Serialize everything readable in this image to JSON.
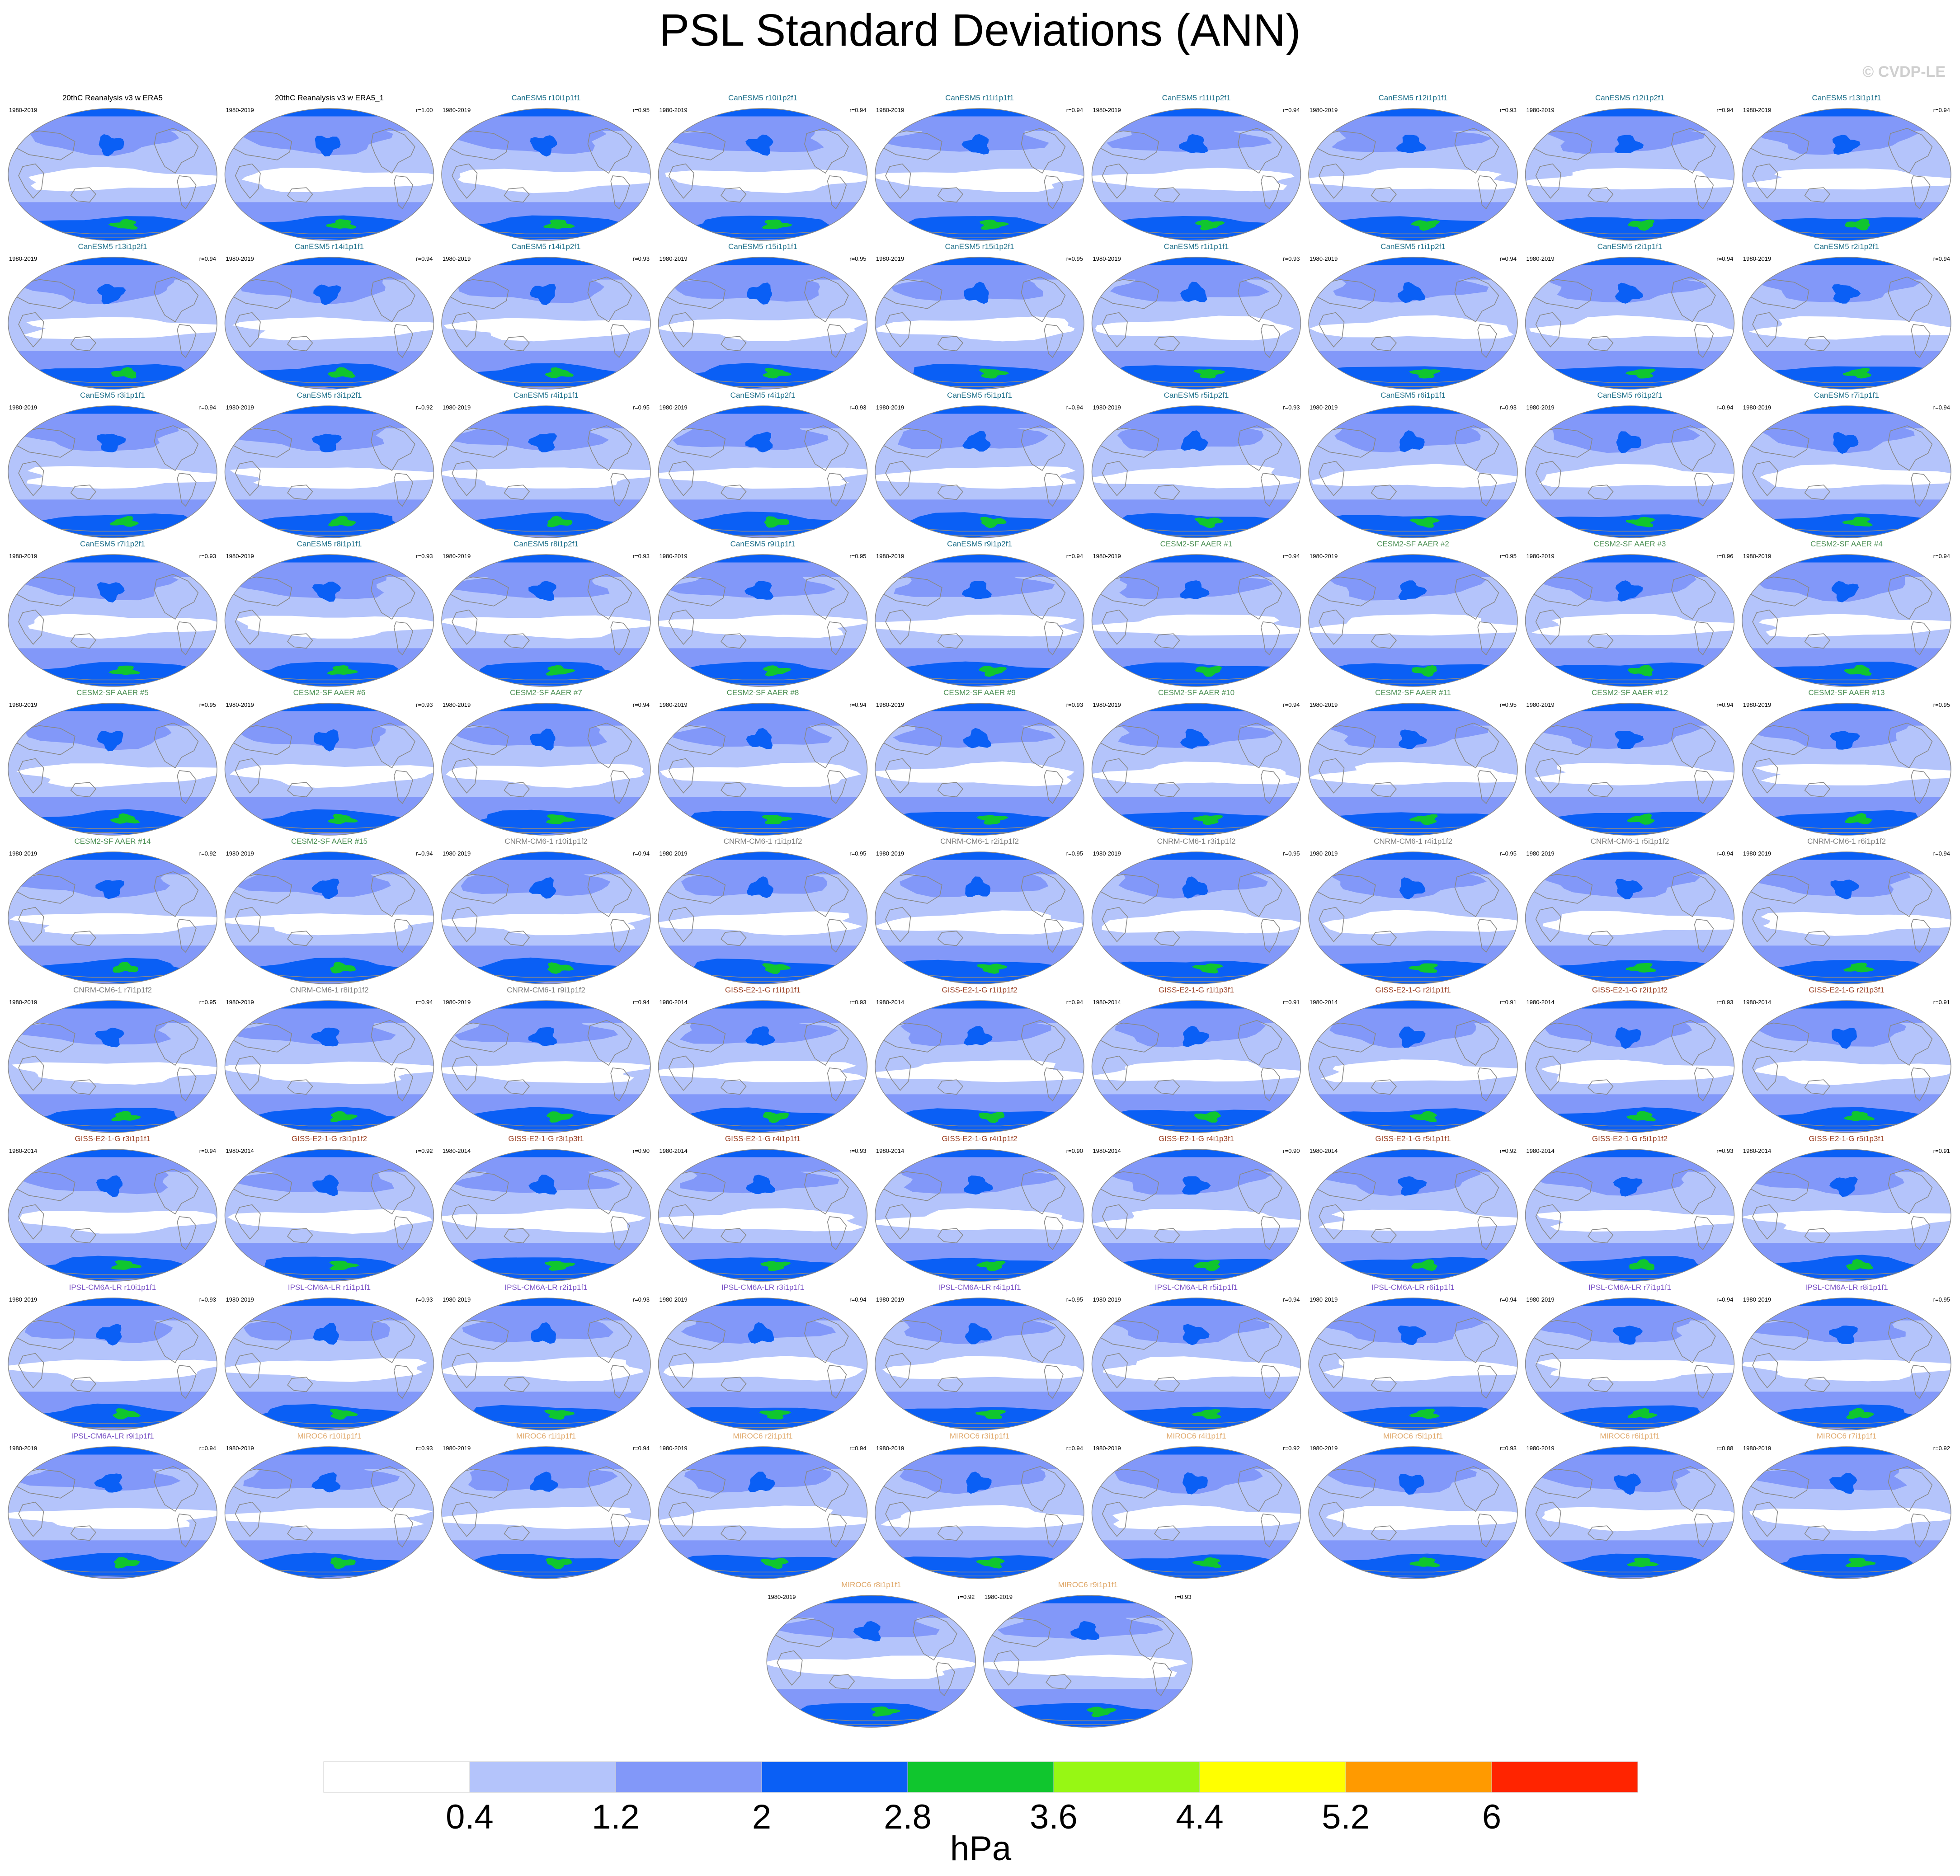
{
  "title": "PSL Standard Deviations (ANN)",
  "copyright": "© CVDP-LE",
  "units": "hPa",
  "colors": {
    "levels": [
      "#ffffff",
      "#b4c4fb",
      "#8298f9",
      "#0a5ff5",
      "#10c62e",
      "#97f714",
      "#ffff00",
      "#ff9a00",
      "#ff2400"
    ],
    "ocean_base": "#b4c4fb",
    "land": "#ffffff",
    "coast": "#888888",
    "title_obs": "#000000",
    "title_canesm5": "#1c6f8a",
    "title_cesm2": "#4a8f52",
    "title_cnrm": "#7f7f7f",
    "title_giss": "#9b3f22",
    "title_ipsl": "#7a52c5",
    "title_miroc6": "#e0a86a"
  },
  "chart_data": {
    "type": "contour-map-grid",
    "title": "PSL Standard Deviations (ANN)",
    "colorbar": {
      "labels": [
        "0.4",
        "1.2",
        "2",
        "2.8",
        "3.6",
        "4.4",
        "5.2",
        "6"
      ],
      "unit": "hPa",
      "boundaries": [
        0.4,
        1.2,
        2,
        2.8,
        3.6,
        4.4,
        5.2,
        6
      ]
    },
    "panels": [
      {
        "title": "20thC Reanalysis v3 w ERA5",
        "period": "1980-2019",
        "r": "",
        "group": "obs"
      },
      {
        "title": "20thC Reanalysis v3 w ERA5_1",
        "period": "1980-2019",
        "r": "r=1.00",
        "group": "obs"
      },
      {
        "title": "CanESM5 r10i1p1f1",
        "period": "1980-2019",
        "r": "r=0.95",
        "group": "canesm5"
      },
      {
        "title": "CanESM5 r10i1p2f1",
        "period": "1980-2019",
        "r": "r=0.94",
        "group": "canesm5"
      },
      {
        "title": "CanESM5 r11i1p1f1",
        "period": "1980-2019",
        "r": "r=0.94",
        "group": "canesm5"
      },
      {
        "title": "CanESM5 r11i1p2f1",
        "period": "1980-2019",
        "r": "r=0.94",
        "group": "canesm5"
      },
      {
        "title": "CanESM5 r12i1p1f1",
        "period": "1980-2019",
        "r": "r=0.93",
        "group": "canesm5"
      },
      {
        "title": "CanESM5 r12i1p2f1",
        "period": "1980-2019",
        "r": "r=0.94",
        "group": "canesm5"
      },
      {
        "title": "CanESM5 r13i1p1f1",
        "period": "1980-2019",
        "r": "r=0.94",
        "group": "canesm5"
      },
      {
        "title": "CanESM5 r13i1p2f1",
        "period": "1980-2019",
        "r": "r=0.94",
        "group": "canesm5"
      },
      {
        "title": "CanESM5 r14i1p1f1",
        "period": "1980-2019",
        "r": "r=0.94",
        "group": "canesm5"
      },
      {
        "title": "CanESM5 r14i1p2f1",
        "period": "1980-2019",
        "r": "r=0.93",
        "group": "canesm5"
      },
      {
        "title": "CanESM5 r15i1p1f1",
        "period": "1980-2019",
        "r": "r=0.95",
        "group": "canesm5"
      },
      {
        "title": "CanESM5 r15i1p2f1",
        "period": "1980-2019",
        "r": "r=0.95",
        "group": "canesm5"
      },
      {
        "title": "CanESM5 r1i1p1f1",
        "period": "1980-2019",
        "r": "r=0.93",
        "group": "canesm5"
      },
      {
        "title": "CanESM5 r1i1p2f1",
        "period": "1980-2019",
        "r": "r=0.94",
        "group": "canesm5"
      },
      {
        "title": "CanESM5 r2i1p1f1",
        "period": "1980-2019",
        "r": "r=0.94",
        "group": "canesm5"
      },
      {
        "title": "CanESM5 r2i1p2f1",
        "period": "1980-2019",
        "r": "r=0.94",
        "group": "canesm5"
      },
      {
        "title": "CanESM5 r3i1p1f1",
        "period": "1980-2019",
        "r": "r=0.94",
        "group": "canesm5"
      },
      {
        "title": "CanESM5 r3i1p2f1",
        "period": "1980-2019",
        "r": "r=0.92",
        "group": "canesm5"
      },
      {
        "title": "CanESM5 r4i1p1f1",
        "period": "1980-2019",
        "r": "r=0.95",
        "group": "canesm5"
      },
      {
        "title": "CanESM5 r4i1p2f1",
        "period": "1980-2019",
        "r": "r=0.93",
        "group": "canesm5"
      },
      {
        "title": "CanESM5 r5i1p1f1",
        "period": "1980-2019",
        "r": "r=0.94",
        "group": "canesm5"
      },
      {
        "title": "CanESM5 r5i1p2f1",
        "period": "1980-2019",
        "r": "r=0.93",
        "group": "canesm5"
      },
      {
        "title": "CanESM5 r6i1p1f1",
        "period": "1980-2019",
        "r": "r=0.93",
        "group": "canesm5"
      },
      {
        "title": "CanESM5 r6i1p2f1",
        "period": "1980-2019",
        "r": "r=0.94",
        "group": "canesm5"
      },
      {
        "title": "CanESM5 r7i1p1f1",
        "period": "1980-2019",
        "r": "r=0.94",
        "group": "canesm5"
      },
      {
        "title": "CanESM5 r7i1p2f1",
        "period": "1980-2019",
        "r": "r=0.93",
        "group": "canesm5"
      },
      {
        "title": "CanESM5 r8i1p1f1",
        "period": "1980-2019",
        "r": "r=0.93",
        "group": "canesm5"
      },
      {
        "title": "CanESM5 r8i1p2f1",
        "period": "1980-2019",
        "r": "r=0.93",
        "group": "canesm5"
      },
      {
        "title": "CanESM5 r9i1p1f1",
        "period": "1980-2019",
        "r": "r=0.95",
        "group": "canesm5"
      },
      {
        "title": "CanESM5 r9i1p2f1",
        "period": "1980-2019",
        "r": "r=0.94",
        "group": "canesm5"
      },
      {
        "title": "CESM2-SF AAER #1",
        "period": "1980-2019",
        "r": "r=0.94",
        "group": "cesm2"
      },
      {
        "title": "CESM2-SF AAER #2",
        "period": "1980-2019",
        "r": "r=0.95",
        "group": "cesm2"
      },
      {
        "title": "CESM2-SF AAER #3",
        "period": "1980-2019",
        "r": "r=0.96",
        "group": "cesm2"
      },
      {
        "title": "CESM2-SF AAER #4",
        "period": "1980-2019",
        "r": "r=0.94",
        "group": "cesm2"
      },
      {
        "title": "CESM2-SF AAER #5",
        "period": "1980-2019",
        "r": "r=0.95",
        "group": "cesm2"
      },
      {
        "title": "CESM2-SF AAER #6",
        "period": "1980-2019",
        "r": "r=0.93",
        "group": "cesm2"
      },
      {
        "title": "CESM2-SF AAER #7",
        "period": "1980-2019",
        "r": "r=0.94",
        "group": "cesm2"
      },
      {
        "title": "CESM2-SF AAER #8",
        "period": "1980-2019",
        "r": "r=0.94",
        "group": "cesm2"
      },
      {
        "title": "CESM2-SF AAER #9",
        "period": "1980-2019",
        "r": "r=0.93",
        "group": "cesm2"
      },
      {
        "title": "CESM2-SF AAER #10",
        "period": "1980-2019",
        "r": "r=0.94",
        "group": "cesm2"
      },
      {
        "title": "CESM2-SF AAER #11",
        "period": "1980-2019",
        "r": "r=0.95",
        "group": "cesm2"
      },
      {
        "title": "CESM2-SF AAER #12",
        "period": "1980-2019",
        "r": "r=0.94",
        "group": "cesm2"
      },
      {
        "title": "CESM2-SF AAER #13",
        "period": "1980-2019",
        "r": "r=0.95",
        "group": "cesm2"
      },
      {
        "title": "CESM2-SF AAER #14",
        "period": "1980-2019",
        "r": "r=0.92",
        "group": "cesm2"
      },
      {
        "title": "CESM2-SF AAER #15",
        "period": "1980-2019",
        "r": "r=0.94",
        "group": "cesm2"
      },
      {
        "title": "CNRM-CM6-1 r10i1p1f2",
        "period": "1980-2019",
        "r": "r=0.94",
        "group": "cnrm"
      },
      {
        "title": "CNRM-CM6-1 r1i1p1f2",
        "period": "1980-2019",
        "r": "r=0.95",
        "group": "cnrm"
      },
      {
        "title": "CNRM-CM6-1 r2i1p1f2",
        "period": "1980-2019",
        "r": "r=0.95",
        "group": "cnrm"
      },
      {
        "title": "CNRM-CM6-1 r3i1p1f2",
        "period": "1980-2019",
        "r": "r=0.95",
        "group": "cnrm"
      },
      {
        "title": "CNRM-CM6-1 r4i1p1f2",
        "period": "1980-2019",
        "r": "r=0.95",
        "group": "cnrm"
      },
      {
        "title": "CNRM-CM6-1 r5i1p1f2",
        "period": "1980-2019",
        "r": "r=0.94",
        "group": "cnrm"
      },
      {
        "title": "CNRM-CM6-1 r6i1p1f2",
        "period": "1980-2019",
        "r": "r=0.94",
        "group": "cnrm"
      },
      {
        "title": "CNRM-CM6-1 r7i1p1f2",
        "period": "1980-2019",
        "r": "r=0.95",
        "group": "cnrm"
      },
      {
        "title": "CNRM-CM6-1 r8i1p1f2",
        "period": "1980-2019",
        "r": "r=0.94",
        "group": "cnrm"
      },
      {
        "title": "CNRM-CM6-1 r9i1p1f2",
        "period": "1980-2019",
        "r": "r=0.94",
        "group": "cnrm"
      },
      {
        "title": "GISS-E2-1-G r1i1p1f1",
        "period": "1980-2014",
        "r": "r=0.93",
        "group": "giss"
      },
      {
        "title": "GISS-E2-1-G r1i1p1f2",
        "period": "1980-2014",
        "r": "r=0.94",
        "group": "giss"
      },
      {
        "title": "GISS-E2-1-G r1i1p3f1",
        "period": "1980-2014",
        "r": "r=0.91",
        "group": "giss"
      },
      {
        "title": "GISS-E2-1-G r2i1p1f1",
        "period": "1980-2014",
        "r": "r=0.91",
        "group": "giss"
      },
      {
        "title": "GISS-E2-1-G r2i1p1f2",
        "period": "1980-2014",
        "r": "r=0.93",
        "group": "giss"
      },
      {
        "title": "GISS-E2-1-G r2i1p3f1",
        "period": "1980-2014",
        "r": "r=0.91",
        "group": "giss"
      },
      {
        "title": "GISS-E2-1-G r3i1p1f1",
        "period": "1980-2014",
        "r": "r=0.94",
        "group": "giss"
      },
      {
        "title": "GISS-E2-1-G r3i1p1f2",
        "period": "1980-2014",
        "r": "r=0.92",
        "group": "giss"
      },
      {
        "title": "GISS-E2-1-G r3i1p3f1",
        "period": "1980-2014",
        "r": "r=0.90",
        "group": "giss"
      },
      {
        "title": "GISS-E2-1-G r4i1p1f1",
        "period": "1980-2014",
        "r": "r=0.93",
        "group": "giss"
      },
      {
        "title": "GISS-E2-1-G r4i1p1f2",
        "period": "1980-2014",
        "r": "r=0.90",
        "group": "giss"
      },
      {
        "title": "GISS-E2-1-G r4i1p3f1",
        "period": "1980-2014",
        "r": "r=0.90",
        "group": "giss"
      },
      {
        "title": "GISS-E2-1-G r5i1p1f1",
        "period": "1980-2014",
        "r": "r=0.92",
        "group": "giss"
      },
      {
        "title": "GISS-E2-1-G r5i1p1f2",
        "period": "1980-2014",
        "r": "r=0.93",
        "group": "giss"
      },
      {
        "title": "GISS-E2-1-G r5i1p3f1",
        "period": "1980-2014",
        "r": "r=0.91",
        "group": "giss"
      },
      {
        "title": "IPSL-CM6A-LR r10i1p1f1",
        "period": "1980-2019",
        "r": "r=0.93",
        "group": "ipsl"
      },
      {
        "title": "IPSL-CM6A-LR r1i1p1f1",
        "period": "1980-2019",
        "r": "r=0.93",
        "group": "ipsl"
      },
      {
        "title": "IPSL-CM6A-LR r2i1p1f1",
        "period": "1980-2019",
        "r": "r=0.93",
        "group": "ipsl"
      },
      {
        "title": "IPSL-CM6A-LR r3i1p1f1",
        "period": "1980-2019",
        "r": "r=0.94",
        "group": "ipsl"
      },
      {
        "title": "IPSL-CM6A-LR r4i1p1f1",
        "period": "1980-2019",
        "r": "r=0.95",
        "group": "ipsl"
      },
      {
        "title": "IPSL-CM6A-LR r5i1p1f1",
        "period": "1980-2019",
        "r": "r=0.94",
        "group": "ipsl"
      },
      {
        "title": "IPSL-CM6A-LR r6i1p1f1",
        "period": "1980-2019",
        "r": "r=0.94",
        "group": "ipsl"
      },
      {
        "title": "IPSL-CM6A-LR r7i1p1f1",
        "period": "1980-2019",
        "r": "r=0.94",
        "group": "ipsl"
      },
      {
        "title": "IPSL-CM6A-LR r8i1p1f1",
        "period": "1980-2019",
        "r": "r=0.95",
        "group": "ipsl"
      },
      {
        "title": "IPSL-CM6A-LR r9i1p1f1",
        "period": "1980-2019",
        "r": "r=0.94",
        "group": "ipsl"
      },
      {
        "title": "MIROC6 r10i1p1f1",
        "period": "1980-2019",
        "r": "r=0.93",
        "group": "miroc6"
      },
      {
        "title": "MIROC6 r1i1p1f1",
        "period": "1980-2019",
        "r": "r=0.94",
        "group": "miroc6"
      },
      {
        "title": "MIROC6 r2i1p1f1",
        "period": "1980-2019",
        "r": "r=0.94",
        "group": "miroc6"
      },
      {
        "title": "MIROC6 r3i1p1f1",
        "period": "1980-2019",
        "r": "r=0.94",
        "group": "miroc6"
      },
      {
        "title": "MIROC6 r4i1p1f1",
        "period": "1980-2019",
        "r": "r=0.92",
        "group": "miroc6"
      },
      {
        "title": "MIROC6 r5i1p1f1",
        "period": "1980-2019",
        "r": "r=0.93",
        "group": "miroc6"
      },
      {
        "title": "MIROC6 r6i1p1f1",
        "period": "1980-2019",
        "r": "r=0.88",
        "group": "miroc6"
      },
      {
        "title": "MIROC6 r7i1p1f1",
        "period": "1980-2019",
        "r": "r=0.92",
        "group": "miroc6"
      },
      {
        "title": "MIROC6 r8i1p1f1",
        "period": "1980-2019",
        "r": "r=0.92",
        "group": "miroc6"
      },
      {
        "title": "MIROC6 r9i1p1f1",
        "period": "1980-2019",
        "r": "r=0.93",
        "group": "miroc6"
      }
    ]
  }
}
